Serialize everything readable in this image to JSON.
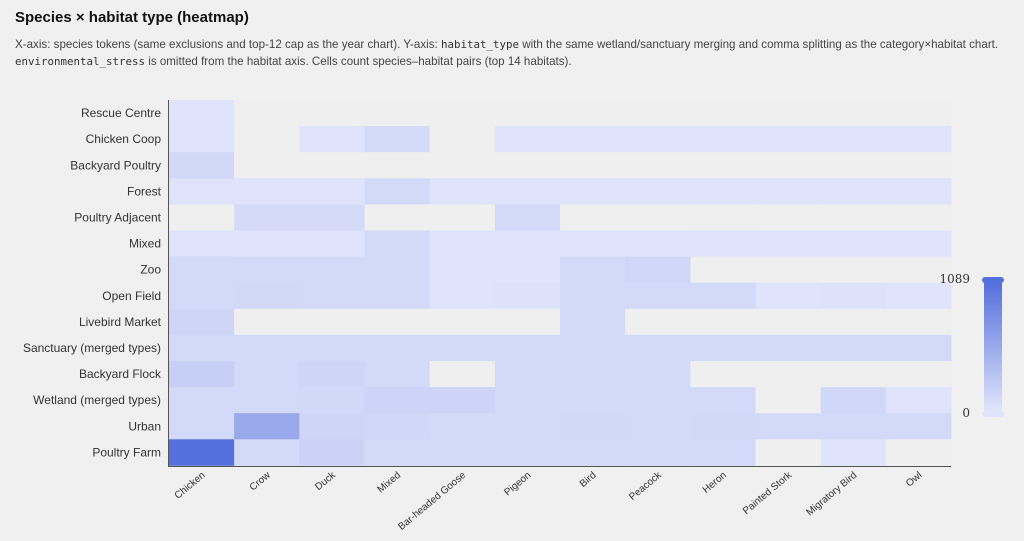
{
  "header": {
    "title": "Species × habitat type (heatmap)",
    "desc_1": "X-axis: species tokens (same exclusions and top-12 cap as the year chart). Y-axis: ",
    "desc_code_1": "habitat_type",
    "desc_2": " with the same wetland/sanctuary merging and comma splitting as the category×habitat chart. ",
    "desc_code_2": "environmental_stress",
    "desc_3": " is omitted from the habitat axis. Cells count species–habitat pairs (top 14 habitats)."
  },
  "chart_data": {
    "type": "heatmap",
    "x_categories": [
      "Chicken",
      "Crow",
      "Duck",
      "Mixed",
      "Bar-headed Goose",
      "Pigeon",
      "Bird",
      "Peacock",
      "Heron",
      "Painted Stork",
      "Migratory Bird",
      "Owl"
    ],
    "y_categories": [
      "Rescue Centre",
      "Chicken Coop",
      "Backyard Poultry",
      "Forest",
      "Poultry Adjacent",
      "Mixed",
      "Zoo",
      "Open Field",
      "Livebird Market",
      "Sanctuary (merged types)",
      "Backyard Flock",
      "Wetland (merged types)",
      "Urban",
      "Poultry Farm"
    ],
    "values": [
      [
        10,
        0,
        0,
        0,
        0,
        0,
        0,
        0,
        0,
        0,
        0,
        0
      ],
      [
        15,
        0,
        8,
        100,
        0,
        5,
        5,
        5,
        10,
        5,
        10,
        5
      ],
      [
        115,
        0,
        0,
        0,
        0,
        0,
        0,
        0,
        0,
        0,
        0,
        0
      ],
      [
        15,
        5,
        10,
        100,
        10,
        5,
        10,
        10,
        15,
        10,
        15,
        5
      ],
      [
        0,
        95,
        95,
        0,
        0,
        100,
        0,
        0,
        0,
        0,
        0,
        0
      ],
      [
        15,
        5,
        10,
        100,
        10,
        5,
        10,
        5,
        15,
        5,
        10,
        5
      ],
      [
        100,
        100,
        100,
        100,
        10,
        10,
        100,
        130,
        0,
        0,
        0,
        0
      ],
      [
        100,
        110,
        100,
        100,
        10,
        20,
        100,
        100,
        100,
        10,
        20,
        10
      ],
      [
        140,
        0,
        0,
        0,
        0,
        0,
        100,
        0,
        0,
        0,
        0,
        0
      ],
      [
        100,
        100,
        100,
        100,
        100,
        100,
        100,
        100,
        100,
        100,
        100,
        100
      ],
      [
        200,
        100,
        140,
        100,
        0,
        100,
        100,
        100,
        0,
        0,
        0,
        0
      ],
      [
        100,
        100,
        110,
        150,
        150,
        100,
        100,
        100,
        100,
        0,
        120,
        10
      ],
      [
        100,
        560,
        140,
        120,
        100,
        100,
        110,
        100,
        110,
        100,
        100,
        100
      ],
      [
        1089,
        100,
        170,
        100,
        100,
        100,
        100,
        100,
        100,
        0,
        10,
        0
      ]
    ],
    "colorscale": {
      "min": 0,
      "max": 1089,
      "min_color": "#e0e4fb",
      "max_color": "#5470dc",
      "empty_color": "#efefef"
    },
    "legend": {
      "position": "right",
      "max_label": "1089",
      "min_label": "0"
    }
  }
}
